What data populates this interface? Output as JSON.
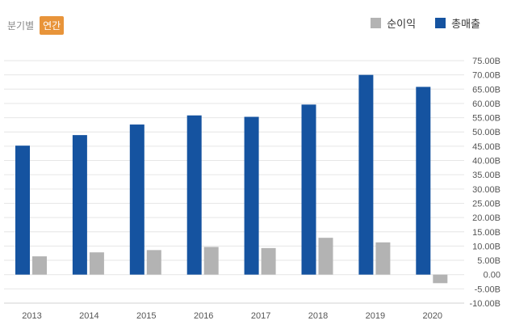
{
  "toggle": {
    "quarterly": "분기별",
    "annual": "연간"
  },
  "chart_data": {
    "type": "bar",
    "categories": [
      "2013",
      "2014",
      "2015",
      "2016",
      "2017",
      "2018",
      "2019",
      "2020"
    ],
    "series": [
      {
        "name": "총매출",
        "color": "#1553a0",
        "values": [
          45.2,
          48.9,
          52.6,
          55.8,
          55.3,
          59.6,
          70.0,
          65.8
        ]
      },
      {
        "name": "순이익",
        "color": "#b3b3b3",
        "values": [
          6.4,
          7.8,
          8.6,
          9.7,
          9.3,
          12.9,
          11.3,
          -3.0
        ]
      }
    ],
    "ylim": [
      -10,
      75
    ],
    "yticks": [
      -10,
      -5,
      0,
      5,
      10,
      15,
      20,
      25,
      30,
      35,
      40,
      45,
      50,
      55,
      60,
      65,
      70,
      75
    ],
    "ytick_labels": [
      "-10.00B",
      "-5.00B",
      "0.00",
      "5.00B",
      "10.00B",
      "15.00B",
      "20.00B",
      "25.00B",
      "30.00B",
      "35.00B",
      "40.00B",
      "45.00B",
      "50.00B",
      "55.00B",
      "60.00B",
      "65.00B",
      "70.00B",
      "75.00B"
    ],
    "grid": true,
    "legend": "top-right"
  }
}
